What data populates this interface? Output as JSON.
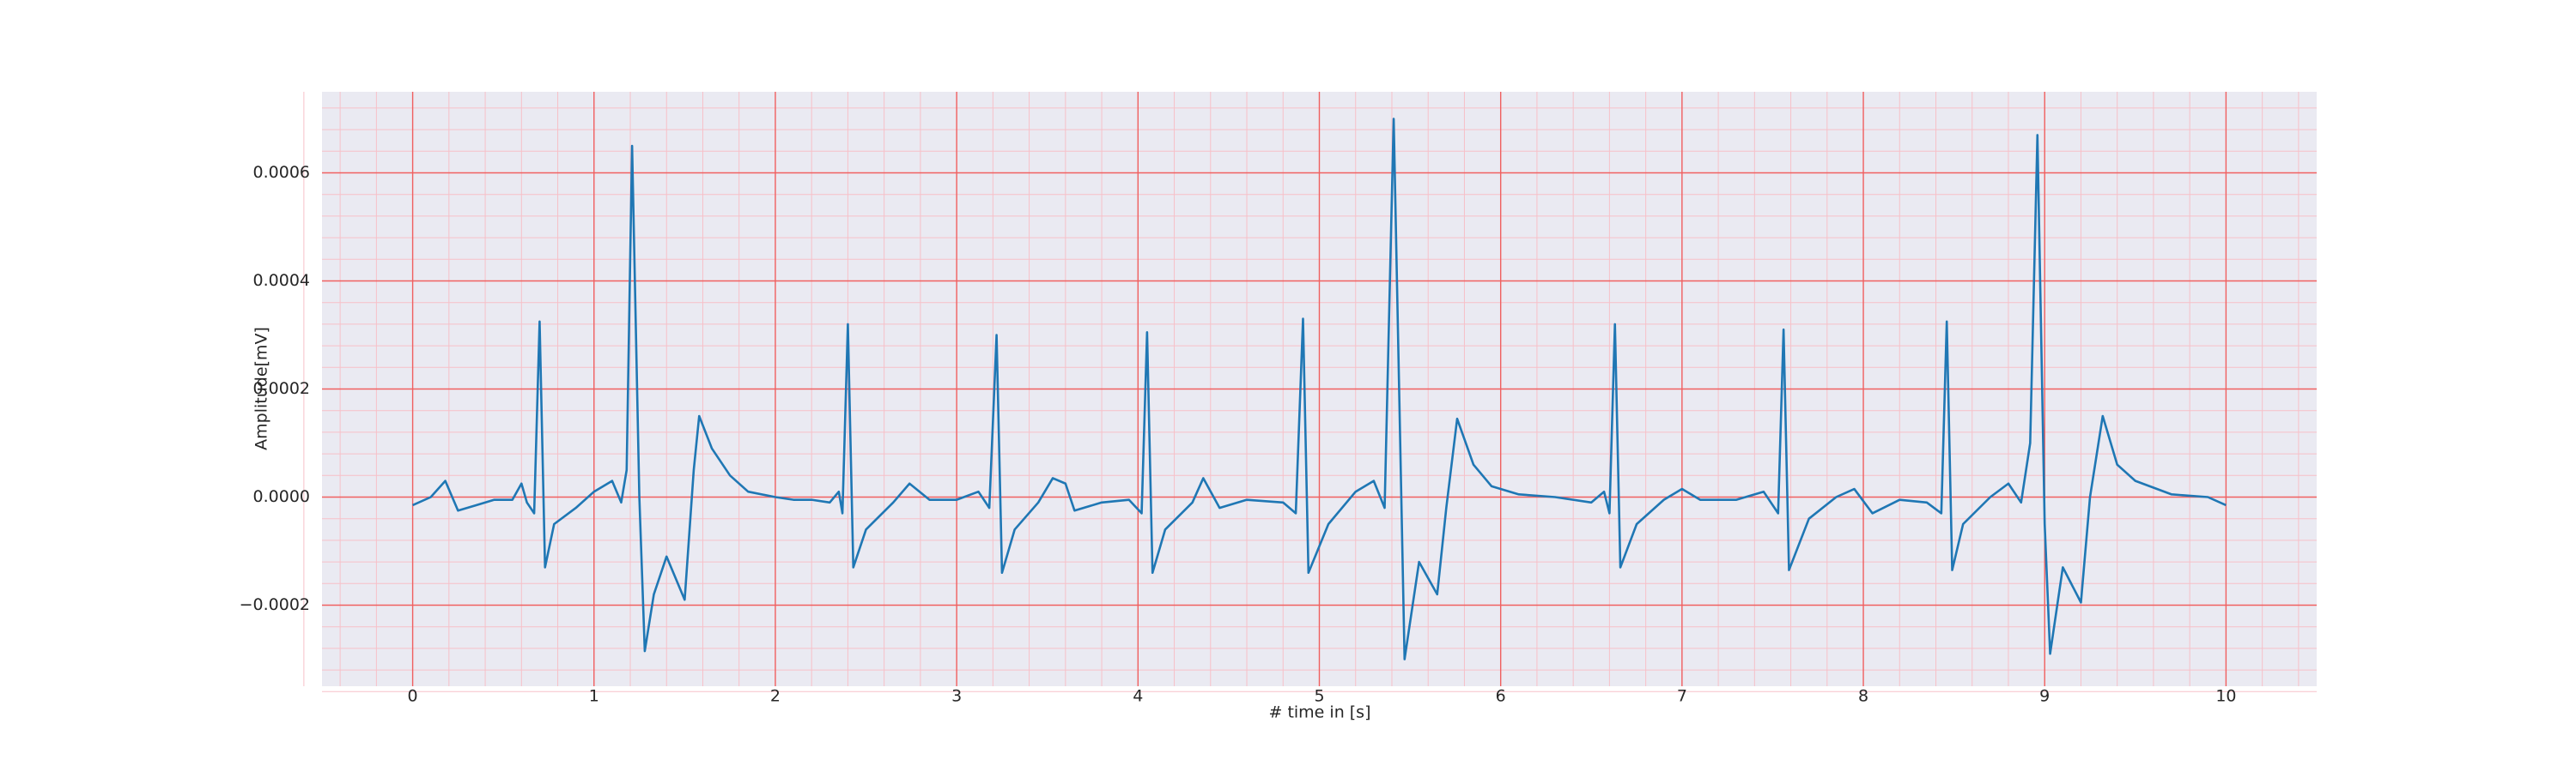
{
  "chart_data": {
    "type": "line",
    "x_label": "# time in [s]",
    "y_label": "Amplitude[mV]",
    "color": "#1f77b4",
    "background": "#eaeaf2",
    "grid": true,
    "grid_color": "#f06060",
    "minor_grid": true,
    "minor_grid_color": "#f7c0c8",
    "xlim": [
      -0.5,
      10.5
    ],
    "ylim": [
      -0.00035,
      0.00075
    ],
    "xticks": [
      0,
      1,
      2,
      3,
      4,
      5,
      6,
      7,
      8,
      9,
      10
    ],
    "yticks": [
      {
        "value": -0.0002,
        "label": "−0.0002"
      },
      {
        "value": 0,
        "label": "0.0000"
      },
      {
        "value": 0.0002,
        "label": "0.0002"
      },
      {
        "value": 0.0004,
        "label": "0.0004"
      },
      {
        "value": 0.0006,
        "label": "0.0006"
      }
    ],
    "x": [
      0,
      0.1,
      0.18,
      0.25,
      0.35,
      0.45,
      0.55,
      0.6,
      0.63,
      0.67,
      0.7,
      0.73,
      0.78,
      0.9,
      1.0,
      1.1,
      1.15,
      1.18,
      1.21,
      1.25,
      1.28,
      1.33,
      1.4,
      1.5,
      1.55,
      1.58,
      1.65,
      1.75,
      1.85,
      2.0,
      2.1,
      2.2,
      2.3,
      2.35,
      2.37,
      2.4,
      2.43,
      2.5,
      2.65,
      2.74,
      2.85,
      3.0,
      3.12,
      3.18,
      3.22,
      3.25,
      3.32,
      3.45,
      3.53,
      3.6,
      3.65,
      3.8,
      3.95,
      4.02,
      4.05,
      4.08,
      4.15,
      4.3,
      4.36,
      4.45,
      4.6,
      4.8,
      4.87,
      4.91,
      4.94,
      5.05,
      5.2,
      5.3,
      5.36,
      5.41,
      5.47,
      5.55,
      5.65,
      5.7,
      5.76,
      5.85,
      5.95,
      6.1,
      6.3,
      6.5,
      6.57,
      6.6,
      6.63,
      6.66,
      6.75,
      6.9,
      7.0,
      7.1,
      7.3,
      7.45,
      7.53,
      7.56,
      7.59,
      7.7,
      7.85,
      7.95,
      8.05,
      8.2,
      8.35,
      8.43,
      8.46,
      8.49,
      8.55,
      8.7,
      8.8,
      8.87,
      8.92,
      8.96,
      9.0,
      9.03,
      9.1,
      9.2,
      9.25,
      9.32,
      9.4,
      9.5,
      9.7,
      9.9,
      10.0
    ],
    "values": [
      -1.5e-05,
      0,
      3e-05,
      -2.5e-05,
      -1.5e-05,
      -5e-06,
      -5e-06,
      2.5e-05,
      -1e-05,
      -3e-05,
      0.000325,
      -0.00013,
      -5e-05,
      -2e-05,
      1e-05,
      3e-05,
      -1e-05,
      5e-05,
      0.00065,
      0,
      -0.000285,
      -0.00018,
      -0.00011,
      -0.00019,
      5e-05,
      0.00015,
      9e-05,
      4e-05,
      1e-05,
      0,
      -5e-06,
      -5e-06,
      -1e-05,
      1e-05,
      -3e-05,
      0.00032,
      -0.00013,
      -6e-05,
      -1e-05,
      2.5e-05,
      -5e-06,
      -5e-06,
      1e-05,
      -2e-05,
      0.0003,
      -0.00014,
      -6e-05,
      -1e-05,
      3.5e-05,
      2.5e-05,
      -2.5e-05,
      -1e-05,
      -5e-06,
      -3e-05,
      0.000305,
      -0.00014,
      -6e-05,
      -1e-05,
      3.5e-05,
      -2e-05,
      -5e-06,
      -1e-05,
      -3e-05,
      0.00033,
      -0.00014,
      -5e-05,
      1e-05,
      3e-05,
      -2e-05,
      0.0007,
      -0.0003,
      -0.00012,
      -0.00018,
      -2e-05,
      0.000145,
      6e-05,
      2e-05,
      5e-06,
      0,
      -1e-05,
      1e-05,
      -3e-05,
      0.00032,
      -0.00013,
      -5e-05,
      -5e-06,
      1.5e-05,
      -5e-06,
      -5e-06,
      1e-05,
      -3e-05,
      0.00031,
      -0.000135,
      -4e-05,
      0,
      1.5e-05,
      -3e-05,
      -5e-06,
      -1e-05,
      -3e-05,
      0.000325,
      -0.000135,
      -5e-05,
      0,
      2.5e-05,
      -1e-05,
      0.0001,
      0.00067,
      -5e-05,
      -0.00029,
      -0.00013,
      -0.000195,
      0,
      0.00015,
      6e-05,
      3e-05,
      5e-06,
      0,
      -1.5e-05
    ]
  }
}
